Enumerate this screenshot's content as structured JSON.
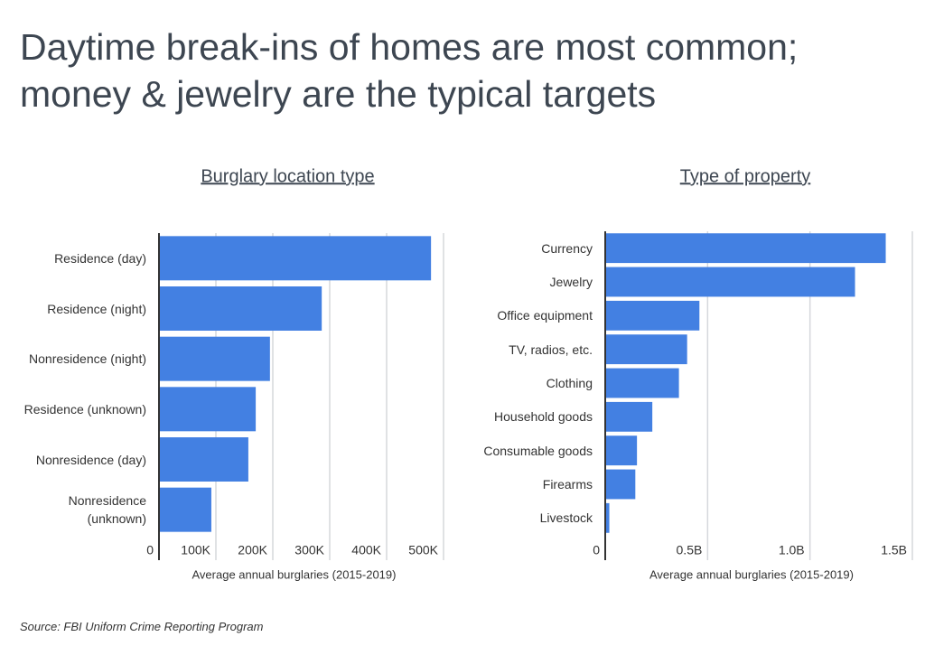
{
  "title": "Daytime break-ins of homes are most common; money & jewelry are the typical targets",
  "source": "Source:  FBI Uniform Crime Reporting Program",
  "chart_data": [
    {
      "type": "bar",
      "orientation": "horizontal",
      "title": "Burglary location type",
      "categories": [
        "Residence (day)",
        "Residence (night)",
        "Nonresidence (night)",
        "Residence (unknown)",
        "Nonresidence (day)",
        "Nonresidence (unknown)"
      ],
      "values": [
        478000,
        286000,
        195000,
        170000,
        157000,
        92000
      ],
      "color": "#4380e2",
      "xlabel": "Average annual burglaries (2015-2019)",
      "xlim": [
        0,
        500000
      ],
      "xticks": [
        0,
        {
          "value": 100000,
          "label": "100K"
        },
        {
          "value": 200000,
          "label": "200K"
        },
        {
          "value": 300000,
          "label": "300K"
        },
        {
          "value": 400000,
          "label": "400K"
        },
        {
          "value": 500000,
          "label": "500K"
        }
      ],
      "grid": true
    },
    {
      "type": "bar",
      "orientation": "horizontal",
      "title": "Type of property",
      "categories": [
        "Currency",
        "Jewelry",
        "Office equipment",
        "TV, radios, etc.",
        "Clothing",
        "Household goods",
        "Consumable goods",
        "Firearms",
        "Livestock"
      ],
      "values": [
        1370000000,
        1220000000,
        460000000,
        400000000,
        360000000,
        230000000,
        155000000,
        147000000,
        20000000
      ],
      "color": "#4380e2",
      "xlabel": "Average annual burglaries (2015-2019)",
      "xlim": [
        0,
        1500000000
      ],
      "xticks": [
        0,
        {
          "value": 500000000,
          "label": "0.5B"
        },
        {
          "value": 1000000000,
          "label": "1.0B"
        },
        {
          "value": 1500000000,
          "label": "1.5B"
        }
      ],
      "grid": true
    }
  ]
}
